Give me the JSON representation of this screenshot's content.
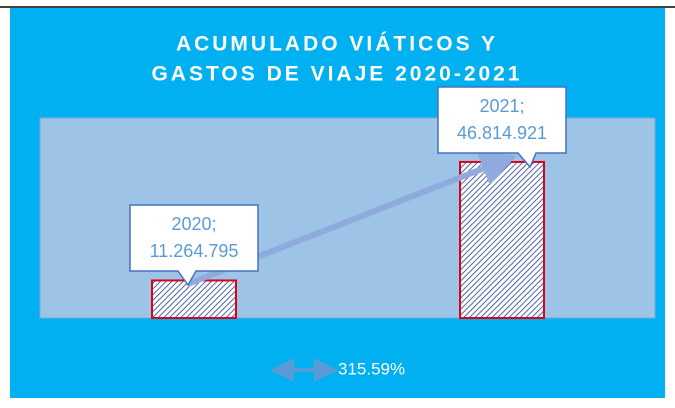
{
  "chart_data": {
    "type": "bar",
    "title": [
      "ACUMULADO VIÁTICOS Y",
      "GASTOS DE VIAJE 2020-2021"
    ],
    "categories": [
      "2020;",
      "2021;"
    ],
    "values": [
      11264795,
      46814921
    ],
    "value_labels": [
      "11.264.795",
      "46.814.921"
    ],
    "color": "#1f3f8f",
    "ylim": [
      0,
      60000000
    ],
    "annotation": "315.59%"
  }
}
